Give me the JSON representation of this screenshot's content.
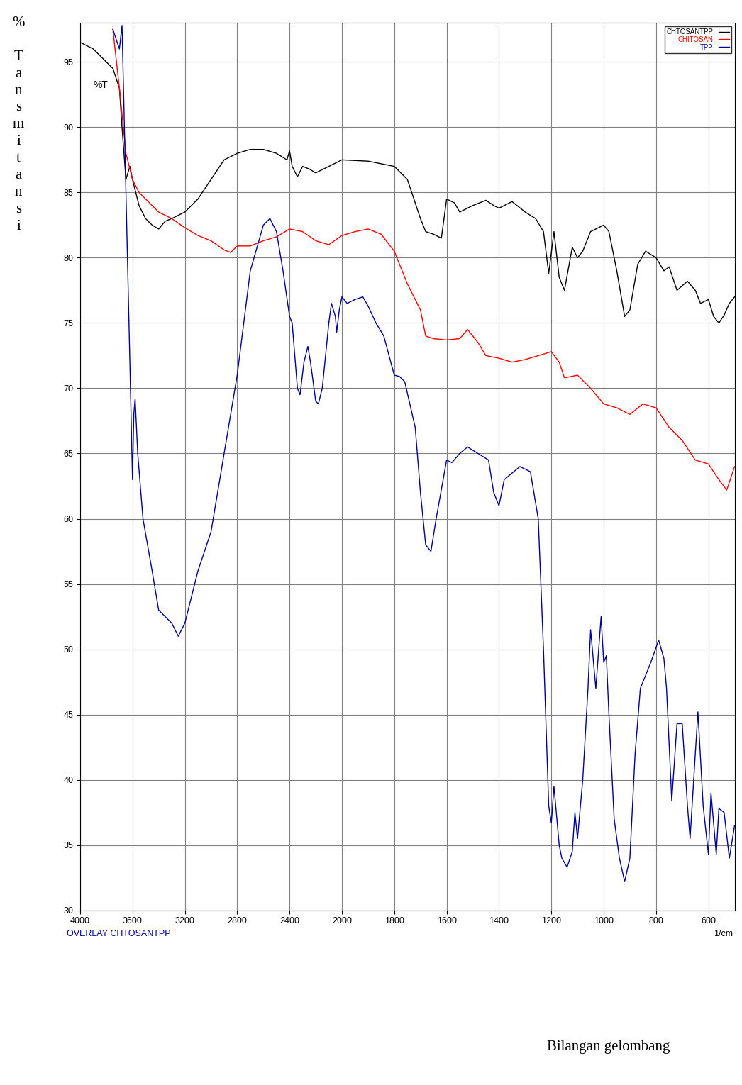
{
  "chart_data": {
    "type": "line",
    "title": "%T",
    "ylabel": "% Tansmitansi",
    "xlabel": "Bilangan gelombang",
    "annotations": [
      {
        "text": "OVERLAY CHTOSANTPP"
      },
      {
        "text": "1/cm"
      }
    ],
    "xlim": [
      4000,
      500
    ],
    "ylim": [
      30,
      98
    ],
    "xticks": [
      4000,
      3600,
      3200,
      2800,
      2400,
      2000,
      1800,
      1600,
      1400,
      1200,
      1000,
      800,
      600
    ],
    "yticks": [
      30,
      35,
      40,
      45,
      50,
      55,
      60,
      65,
      70,
      75,
      80,
      85,
      90,
      95
    ],
    "grid": true,
    "legend": "upper right",
    "series": [
      {
        "name": "CHTOSANTPP",
        "color": "#000000",
        "x": [
          4000,
          3900,
          3800,
          3750,
          3700,
          3680,
          3650,
          3620,
          3600,
          3550,
          3500,
          3450,
          3400,
          3350,
          3300,
          3200,
          3100,
          3000,
          2900,
          2800,
          2700,
          2600,
          2500,
          2420,
          2400,
          2380,
          2340,
          2300,
          2250,
          2200,
          2100,
          2000,
          1900,
          1800,
          1750,
          1700,
          1680,
          1650,
          1620,
          1600,
          1570,
          1550,
          1500,
          1450,
          1420,
          1400,
          1350,
          1300,
          1260,
          1230,
          1210,
          1190,
          1170,
          1150,
          1120,
          1100,
          1080,
          1050,
          1000,
          980,
          950,
          920,
          900,
          870,
          840,
          800,
          770,
          750,
          720,
          680,
          650,
          630,
          600,
          580,
          560,
          540,
          520,
          500
        ],
        "values": [
          96.5,
          96,
          95,
          94.5,
          93,
          90,
          86,
          87,
          86,
          84,
          83,
          82.5,
          82.2,
          82.8,
          83,
          83.5,
          84.5,
          86,
          87.5,
          88,
          88.3,
          88.3,
          88,
          87.5,
          88.2,
          87,
          86.2,
          87,
          86.8,
          86.5,
          87,
          87.5,
          87.4,
          87,
          86,
          83,
          82,
          81.8,
          81.5,
          84.5,
          84.2,
          83.5,
          84,
          84.4,
          84,
          83.8,
          84.3,
          83.5,
          83,
          82,
          78.8,
          82,
          78.5,
          77.5,
          80.8,
          80,
          80.5,
          82,
          82.5,
          82,
          79,
          75.5,
          76,
          79.5,
          80.5,
          80,
          79,
          79.3,
          77.5,
          78.2,
          77.5,
          76.5,
          76.8,
          75.5,
          75,
          75.6,
          76.5,
          77
        ]
      },
      {
        "name": "CHITOSAN",
        "color": "#ff0000",
        "x": [
          3750,
          3700,
          3650,
          3600,
          3550,
          3500,
          3400,
          3300,
          3200,
          3100,
          3000,
          2900,
          2850,
          2800,
          2700,
          2600,
          2500,
          2400,
          2300,
          2200,
          2100,
          2000,
          1950,
          1900,
          1850,
          1800,
          1750,
          1700,
          1680,
          1650,
          1600,
          1550,
          1520,
          1480,
          1450,
          1400,
          1350,
          1300,
          1250,
          1200,
          1170,
          1150,
          1100,
          1050,
          1000,
          950,
          900,
          850,
          800,
          750,
          700,
          650,
          600,
          560,
          530,
          500
        ],
        "values": [
          97.5,
          93,
          88,
          86,
          85,
          84.5,
          83.5,
          83,
          82.3,
          81.7,
          81.3,
          80.6,
          80.4,
          80.9,
          80.9,
          81.3,
          81.6,
          82.2,
          82,
          81.3,
          81,
          81.7,
          82,
          82.2,
          81.8,
          80.5,
          78,
          76,
          74,
          73.8,
          73.7,
          73.8,
          74.5,
          73.5,
          72.5,
          72.3,
          72,
          72.2,
          72.5,
          72.8,
          72,
          70.8,
          71,
          70,
          68.8,
          68.5,
          68,
          68.8,
          68.5,
          67,
          66,
          64.5,
          64.2,
          63,
          62.2,
          64
        ]
      },
      {
        "name": "TPP",
        "color": "#000099",
        "x": [
          3750,
          3700,
          3680,
          3650,
          3620,
          3600,
          3590,
          3580,
          3560,
          3520,
          3450,
          3400,
          3300,
          3250,
          3200,
          3100,
          3000,
          2900,
          2800,
          2700,
          2600,
          2550,
          2500,
          2450,
          2400,
          2380,
          2340,
          2320,
          2290,
          2260,
          2240,
          2200,
          2180,
          2150,
          2100,
          2080,
          2050,
          2040,
          2020,
          2000,
          1980,
          1950,
          1920,
          1900,
          1870,
          1840,
          1800,
          1780,
          1760,
          1720,
          1700,
          1680,
          1660,
          1640,
          1600,
          1580,
          1550,
          1520,
          1480,
          1440,
          1420,
          1400,
          1380,
          1350,
          1320,
          1280,
          1250,
          1230,
          1210,
          1200,
          1190,
          1170,
          1160,
          1140,
          1120,
          1110,
          1100,
          1080,
          1060,
          1050,
          1030,
          1010,
          1000,
          990,
          980,
          960,
          940,
          920,
          900,
          880,
          860,
          820,
          790,
          770,
          760,
          740,
          720,
          700,
          680,
          670,
          650,
          640,
          620,
          600,
          590,
          570,
          560,
          540,
          520,
          500
        ],
        "values": [
          97.5,
          96,
          97.8,
          85,
          72,
          63,
          68,
          69.2,
          65,
          60,
          56,
          53,
          52,
          51,
          52,
          56,
          59,
          65,
          71,
          79,
          82.5,
          83,
          82,
          79,
          75.5,
          75,
          70,
          69.5,
          72,
          73.2,
          72,
          69,
          68.8,
          70,
          75,
          76.5,
          75.5,
          74.3,
          76,
          77,
          76.5,
          76.8,
          77,
          76.3,
          75,
          74,
          71,
          70.9,
          70.5,
          67,
          62,
          58,
          57.5,
          60,
          64.5,
          64.3,
          65,
          65.5,
          65,
          64.5,
          62,
          61,
          63,
          63.5,
          64,
          63.6,
          60,
          50,
          38,
          36.7,
          39.5,
          35,
          34,
          33.3,
          34.5,
          37.5,
          35.5,
          40,
          47,
          51.5,
          47,
          52.5,
          49,
          49.5,
          45,
          37,
          34,
          32.2,
          34,
          42,
          47,
          49,
          50.7,
          49.3,
          47,
          38.4,
          44.3,
          44.3,
          38,
          35.5,
          42,
          45.2,
          38,
          34.3,
          39,
          34.3,
          37.8,
          37.5,
          34,
          36.5
        ]
      }
    ]
  }
}
